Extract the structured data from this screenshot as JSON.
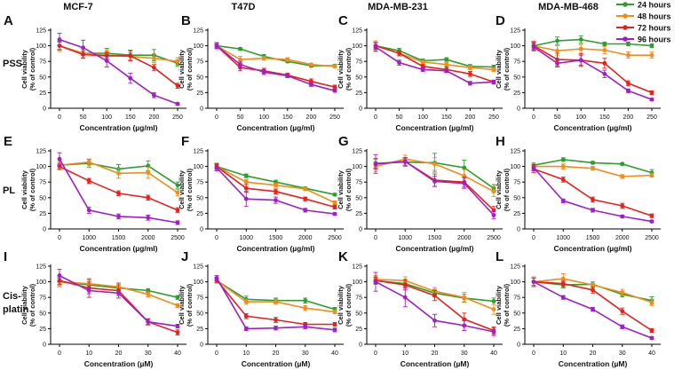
{
  "figure": {
    "column_titles": [
      "MCF-7",
      "T47D",
      "MDA-MB-231",
      "MDA-MB-468"
    ],
    "row_labels": [
      [
        "PSS"
      ],
      [
        "PL"
      ],
      [
        "Cis-",
        "platin"
      ]
    ],
    "panel_letters": [
      "A",
      "B",
      "C",
      "D",
      "E",
      "F",
      "G",
      "H",
      "I",
      "J",
      "K",
      "L"
    ],
    "ylabel_lines": [
      "Cell viability",
      "(% of control)"
    ],
    "xlabels": [
      "Concentration (µg/ml)",
      "Concentration (µg/ml)",
      "Concentration (µM)"
    ],
    "legend": [
      {
        "label": "24 hours",
        "color": "#2ca02c"
      },
      {
        "label": "48 hours",
        "color": "#f28c1e"
      },
      {
        "label": "72 hours",
        "color": "#e8211c"
      },
      {
        "label": "96 hours",
        "color": "#a020c8"
      }
    ]
  },
  "chart_data": [
    {
      "type": "line",
      "panel": "A",
      "title": "MCF-7",
      "row": "PSS",
      "x": [
        0,
        50,
        100,
        150,
        200,
        250
      ],
      "ylim": [
        0,
        125
      ],
      "yticks": [
        0,
        25,
        50,
        75,
        100,
        125
      ],
      "series": [
        {
          "name": "24 hours",
          "values": [
            100,
            88,
            88,
            85,
            85,
            72
          ],
          "errors": [
            7,
            8,
            8,
            8,
            9,
            5
          ]
        },
        {
          "name": "48 hours",
          "values": [
            100,
            88,
            85,
            83,
            80,
            75
          ],
          "errors": [
            9,
            7,
            8,
            6,
            7,
            6
          ]
        },
        {
          "name": "72 hours",
          "values": [
            100,
            86,
            84,
            84,
            65,
            36
          ],
          "errors": [
            6,
            6,
            6,
            8,
            5,
            4
          ]
        },
        {
          "name": "96 hours",
          "values": [
            110,
            97,
            76,
            48,
            21,
            7
          ],
          "errors": [
            10,
            12,
            10,
            8,
            4,
            2
          ]
        }
      ]
    },
    {
      "type": "line",
      "panel": "B",
      "title": "T47D",
      "row": "PSS",
      "x": [
        0,
        50,
        100,
        150,
        200,
        250
      ],
      "ylim": [
        0,
        125
      ],
      "yticks": [
        0,
        25,
        50,
        75,
        100,
        125
      ],
      "series": [
        {
          "name": "24 hours",
          "values": [
            100,
            95,
            83,
            75,
            68,
            68
          ],
          "errors": [
            3,
            2,
            3,
            2,
            2,
            2
          ]
        },
        {
          "name": "48 hours",
          "values": [
            100,
            78,
            80,
            78,
            70,
            67
          ],
          "errors": [
            6,
            5,
            3,
            3,
            2,
            2
          ]
        },
        {
          "name": "72 hours",
          "values": [
            100,
            65,
            60,
            53,
            43,
            34
          ],
          "errors": [
            4,
            5,
            4,
            3,
            4,
            3
          ]
        },
        {
          "name": "96 hours",
          "values": [
            100,
            70,
            58,
            52,
            38,
            28
          ],
          "errors": [
            4,
            5,
            4,
            3,
            3,
            2
          ]
        }
      ]
    },
    {
      "type": "line",
      "panel": "C",
      "title": "MDA-MB-231",
      "row": "PSS",
      "x": [
        0,
        50,
        100,
        150,
        200,
        250
      ],
      "ylim": [
        0,
        125
      ],
      "yticks": [
        0,
        25,
        50,
        75,
        100,
        125
      ],
      "series": [
        {
          "name": "24 hours",
          "values": [
            100,
            92,
            76,
            78,
            67,
            66
          ],
          "errors": [
            6,
            4,
            3,
            3,
            3,
            3
          ]
        },
        {
          "name": "48 hours",
          "values": [
            100,
            88,
            74,
            70,
            65,
            62
          ],
          "errors": [
            8,
            4,
            3,
            3,
            3,
            3
          ]
        },
        {
          "name": "72 hours",
          "values": [
            100,
            88,
            67,
            62,
            55,
            42
          ],
          "errors": [
            5,
            4,
            3,
            4,
            4,
            3
          ]
        },
        {
          "name": "96 hours",
          "values": [
            98,
            73,
            62,
            60,
            40,
            42
          ],
          "errors": [
            7,
            4,
            3,
            3,
            3,
            3
          ]
        }
      ]
    },
    {
      "type": "line",
      "panel": "D",
      "title": "MDA-MB-468",
      "row": "PSS",
      "x": [
        0,
        50,
        100,
        150,
        200,
        250
      ],
      "ylim": [
        0,
        125
      ],
      "yticks": [
        0,
        25,
        50,
        75,
        100,
        125
      ],
      "series": [
        {
          "name": "24 hours",
          "values": [
            100,
            108,
            110,
            103,
            103,
            100
          ],
          "errors": [
            5,
            6,
            6,
            3,
            3,
            3
          ]
        },
        {
          "name": "48 hours",
          "values": [
            100,
            92,
            95,
            93,
            85,
            85
          ],
          "errors": [
            6,
            8,
            7,
            6,
            5,
            5
          ]
        },
        {
          "name": "72 hours",
          "values": [
            100,
            78,
            77,
            72,
            40,
            25
          ],
          "errors": [
            7,
            10,
            10,
            8,
            4,
            3
          ]
        },
        {
          "name": "96 hours",
          "values": [
            98,
            72,
            77,
            55,
            28,
            14
          ],
          "errors": [
            6,
            6,
            8,
            6,
            3,
            2
          ]
        }
      ]
    },
    {
      "type": "line",
      "panel": "E",
      "title": "MCF-7",
      "row": "PL",
      "x": [
        0,
        1000,
        1500,
        2000,
        2500
      ],
      "ylim": [
        0,
        125
      ],
      "yticks": [
        0,
        25,
        50,
        75,
        100,
        125
      ],
      "series": [
        {
          "name": "24 hours",
          "values": [
            102,
            105,
            96,
            101,
            70
          ],
          "errors": [
            6,
            6,
            7,
            8,
            5
          ]
        },
        {
          "name": "48 hours",
          "values": [
            102,
            107,
            89,
            90,
            58
          ],
          "errors": [
            6,
            5,
            8,
            9,
            5
          ]
        },
        {
          "name": "72 hours",
          "values": [
            100,
            77,
            57,
            50,
            30
          ],
          "errors": [
            5,
            4,
            4,
            4,
            4
          ]
        },
        {
          "name": "96 hours",
          "values": [
            112,
            30,
            20,
            18,
            10
          ],
          "errors": [
            10,
            5,
            4,
            4,
            3
          ]
        }
      ]
    },
    {
      "type": "line",
      "panel": "F",
      "title": "T47D",
      "row": "PL",
      "x": [
        0,
        1000,
        1500,
        2000,
        2500
      ],
      "ylim": [
        0,
        125
      ],
      "yticks": [
        0,
        25,
        50,
        75,
        100,
        125
      ],
      "series": [
        {
          "name": "24 hours",
          "values": [
            100,
            85,
            75,
            65,
            55
          ],
          "errors": [
            4,
            3,
            3,
            2,
            2
          ]
        },
        {
          "name": "48 hours",
          "values": [
            100,
            75,
            70,
            64,
            42
          ],
          "errors": [
            5,
            4,
            3,
            2,
            3
          ]
        },
        {
          "name": "72 hours",
          "values": [
            100,
            65,
            60,
            48,
            35
          ],
          "errors": [
            5,
            6,
            4,
            3,
            3
          ]
        },
        {
          "name": "96 hours",
          "values": [
            98,
            48,
            46,
            30,
            24
          ],
          "errors": [
            5,
            12,
            5,
            3,
            2
          ]
        }
      ]
    },
    {
      "type": "line",
      "panel": "G",
      "title": "MDA-MB-231",
      "row": "PL",
      "x": [
        0,
        1000,
        1500,
        2000,
        2500
      ],
      "ylim": [
        0,
        125
      ],
      "yticks": [
        0,
        25,
        50,
        75,
        100,
        125
      ],
      "series": [
        {
          "name": "24 hours",
          "values": [
            105,
            107,
            106,
            98,
            65
          ],
          "errors": [
            8,
            7,
            15,
            12,
            6
          ]
        },
        {
          "name": "48 hours",
          "values": [
            100,
            112,
            104,
            85,
            60
          ],
          "errors": [
            8,
            6,
            10,
            10,
            8
          ]
        },
        {
          "name": "72 hours",
          "values": [
            104,
            108,
            78,
            75,
            30
          ],
          "errors": [
            8,
            6,
            10,
            8,
            6
          ]
        },
        {
          "name": "96 hours",
          "values": [
            104,
            108,
            76,
            73,
            22
          ],
          "errors": [
            15,
            6,
            8,
            8,
            6
          ]
        }
      ]
    },
    {
      "type": "line",
      "panel": "H",
      "title": "MDA-MB-468",
      "row": "PL",
      "x": [
        0,
        1000,
        1500,
        2000,
        2500
      ],
      "ylim": [
        0,
        125
      ],
      "yticks": [
        0,
        25,
        50,
        75,
        100,
        125
      ],
      "series": [
        {
          "name": "24 hours",
          "values": [
            102,
            111,
            106,
            104,
            90
          ],
          "errors": [
            4,
            3,
            2,
            2,
            5
          ]
        },
        {
          "name": "48 hours",
          "values": [
            100,
            100,
            97,
            84,
            86
          ],
          "errors": [
            6,
            4,
            3,
            3,
            3
          ]
        },
        {
          "name": "72 hours",
          "values": [
            96,
            79,
            47,
            37,
            21
          ],
          "errors": [
            6,
            4,
            4,
            4,
            3
          ]
        },
        {
          "name": "96 hours",
          "values": [
            98,
            45,
            30,
            20,
            12
          ],
          "errors": [
            5,
            3,
            3,
            2,
            2
          ]
        }
      ]
    },
    {
      "type": "line",
      "panel": "I",
      "title": "MCF-7",
      "row": "Cis-platin",
      "x": [
        0,
        10,
        20,
        30,
        40
      ],
      "ylim": [
        0,
        125
      ],
      "yticks": [
        0,
        25,
        50,
        75,
        100,
        125
      ],
      "series": [
        {
          "name": "24 hours",
          "values": [
            100,
            95,
            90,
            86,
            75
          ],
          "errors": [
            6,
            5,
            4,
            3,
            3
          ]
        },
        {
          "name": "48 hours",
          "values": [
            100,
            97,
            92,
            80,
            62
          ],
          "errors": [
            8,
            6,
            4,
            4,
            3
          ]
        },
        {
          "name": "72 hours",
          "values": [
            102,
            90,
            86,
            36,
            19
          ],
          "errors": [
            6,
            15,
            12,
            5,
            4
          ]
        },
        {
          "name": "96 hours",
          "values": [
            110,
            86,
            82,
            36,
            29
          ],
          "errors": [
            10,
            5,
            4,
            4,
            3
          ]
        }
      ]
    },
    {
      "type": "line",
      "panel": "J",
      "title": "T47D",
      "row": "Cis-platin",
      "x": [
        0,
        10,
        20,
        30,
        40
      ],
      "ylim": [
        0,
        125
      ],
      "yticks": [
        0,
        25,
        50,
        75,
        100,
        125
      ],
      "series": [
        {
          "name": "24 hours",
          "values": [
            102,
            72,
            70,
            70,
            56
          ],
          "errors": [
            4,
            5,
            4,
            4,
            3
          ]
        },
        {
          "name": "48 hours",
          "values": [
            102,
            68,
            68,
            58,
            52
          ],
          "errors": [
            4,
            4,
            4,
            4,
            3
          ]
        },
        {
          "name": "72 hours",
          "values": [
            103,
            45,
            39,
            32,
            32
          ],
          "errors": [
            4,
            4,
            4,
            3,
            3
          ]
        },
        {
          "name": "96 hours",
          "values": [
            106,
            25,
            26,
            28,
            23
          ],
          "errors": [
            4,
            3,
            3,
            3,
            3
          ]
        }
      ]
    },
    {
      "type": "line",
      "panel": "K",
      "title": "MDA-MB-231",
      "row": "Cis-platin",
      "x": [
        0,
        10,
        20,
        30,
        40
      ],
      "ylim": [
        0,
        125
      ],
      "yticks": [
        0,
        25,
        50,
        75,
        100,
        125
      ],
      "series": [
        {
          "name": "24 hours",
          "values": [
            102,
            97,
            82,
            74,
            69
          ],
          "errors": [
            6,
            5,
            6,
            6,
            5
          ]
        },
        {
          "name": "48 hours",
          "values": [
            104,
            102,
            85,
            75,
            56
          ],
          "errors": [
            6,
            6,
            6,
            8,
            8
          ]
        },
        {
          "name": "72 hours",
          "values": [
            102,
            95,
            78,
            40,
            22
          ],
          "errors": [
            5,
            8,
            8,
            10,
            6
          ]
        },
        {
          "name": "96 hours",
          "values": [
            100,
            75,
            38,
            30,
            20
          ],
          "errors": [
            15,
            15,
            10,
            8,
            6
          ]
        }
      ]
    },
    {
      "type": "line",
      "panel": "L",
      "title": "MDA-MB-468",
      "row": "Cis-platin",
      "x": [
        0,
        10,
        20,
        30,
        40
      ],
      "ylim": [
        0,
        125
      ],
      "yticks": [
        0,
        25,
        50,
        75,
        100,
        125
      ],
      "series": [
        {
          "name": "24 hours",
          "values": [
            100,
            95,
            96,
            80,
            70
          ],
          "errors": [
            8,
            5,
            4,
            4,
            6
          ]
        },
        {
          "name": "48 hours",
          "values": [
            100,
            105,
            95,
            83,
            67
          ],
          "errors": [
            8,
            8,
            5,
            5,
            5
          ]
        },
        {
          "name": "72 hours",
          "values": [
            100,
            97,
            87,
            53,
            22
          ],
          "errors": [
            6,
            5,
            5,
            5,
            3
          ]
        },
        {
          "name": "96 hours",
          "values": [
            100,
            75,
            56,
            28,
            10
          ],
          "errors": [
            6,
            3,
            3,
            3,
            2
          ]
        }
      ]
    }
  ]
}
